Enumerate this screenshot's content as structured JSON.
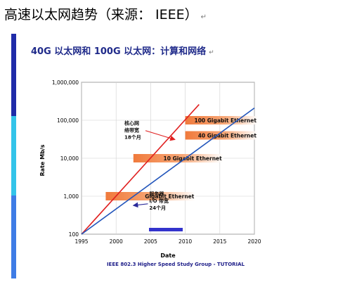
{
  "slide": {
    "heading": "高速以太网趋势（来源： IEEE）",
    "subheading": "40G 以太网和 100G 以太网：计算和网络",
    "paragraph_mark": "↵",
    "footer": "IEEE 802.3 Higher Speed Study Group - TUTORIAL",
    "colors": {
      "sidebar_top": "#1f2ba8",
      "sidebar_mid": "#33c4ea",
      "sidebar_bottom": "#3e7ce6",
      "subheading": "#1f2a8a"
    }
  },
  "chart_data": {
    "type": "line",
    "title": "",
    "xlabel": "Date",
    "ylabel": "Rate Mb/s",
    "xlim": [
      1995,
      2020
    ],
    "ylim": [
      100,
      1000000
    ],
    "y_scale": "log",
    "grid": true,
    "x_ticks": [
      1995,
      2000,
      2005,
      2010,
      2015,
      2020
    ],
    "y_ticks": [
      {
        "value": 100,
        "label": "100"
      },
      {
        "value": 1000,
        "label": "1,000"
      },
      {
        "value": 10000,
        "label": "10,000"
      },
      {
        "value": 100000,
        "label": "100,000"
      },
      {
        "value": 1000000,
        "label": "1,000,000"
      }
    ],
    "series": [
      {
        "name": "核心网络带宽 - 18个月",
        "color": "#e02020",
        "x": [
          1995,
          2012
        ],
        "y": [
          100,
          260000
        ]
      },
      {
        "name": "服务器I/O带宽 - 24个月",
        "color": "#2255bb",
        "x": [
          1995,
          2020
        ],
        "y": [
          100,
          210000
        ]
      }
    ],
    "bars": [
      {
        "label": "100 Gigabit Ethernet",
        "value": 100000,
        "start": 2010,
        "end": 2020.5
      },
      {
        "label": "40 Gigabit Ethernet",
        "value": 40000,
        "start": 2010,
        "end": 2020.5
      },
      {
        "label": "10 Gigabit Ethernet",
        "value": 10000,
        "start": 2002.5,
        "end": 2015.5
      },
      {
        "label": "Gigabit Ethernet",
        "value": 1000,
        "start": 1998.5,
        "end": 2011.5
      }
    ],
    "annotations": [
      {
        "id": "core",
        "lines": [
          "核心网",
          "络带宽",
          "18个月"
        ],
        "x": 2001.2,
        "y": 75000,
        "arrow_to": [
          2008.5,
          31000
        ],
        "color": "#e02020"
      },
      {
        "id": "server",
        "lines": [
          "服务器",
          "I/O 带宽",
          "24个月"
        ],
        "x": 2004.8,
        "y": 1050,
        "arrow_to": [
          2002.5,
          570
        ],
        "color": "#2a2a9a"
      }
    ]
  }
}
